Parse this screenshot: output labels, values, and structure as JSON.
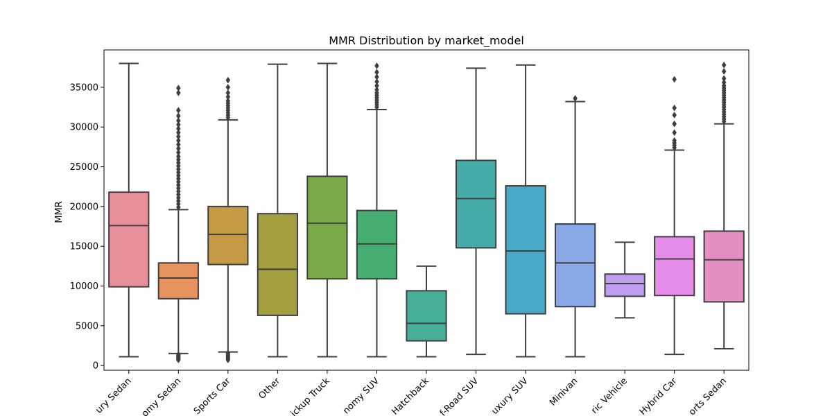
{
  "chart_data": {
    "type": "box",
    "title": "MMR Distribution by market_model",
    "xlabel": "",
    "ylabel": "MMR",
    "ylim": [
      -600,
      39700
    ],
    "yticks": [
      0,
      5000,
      10000,
      15000,
      20000,
      25000,
      30000,
      35000
    ],
    "grid": false,
    "categories": [
      "Luxury Sedan",
      "Economy Sedan",
      "Sports Car",
      "Other",
      "Pickup Truck",
      "Economy SUV",
      "Hatchback",
      "Off-Road SUV",
      "Luxury SUV",
      "Minivan",
      "Electric Vehicle",
      "Hybrid Car",
      "Sports Sedan"
    ],
    "category_labels_shown": [
      "ury Sedan",
      "omy Sedan",
      "Sports Car",
      "Other",
      "ickup Truck",
      "nomy SUV",
      "Hatchback",
      "f-Road SUV",
      "uxury SUV",
      "Minivan",
      "ric Vehicle",
      "Hybrid Car",
      "orts Sedan"
    ],
    "colors": [
      "#e8909a",
      "#e6935f",
      "#c49a44",
      "#a39f3e",
      "#7aaa48",
      "#46ad73",
      "#47ae99",
      "#45aba8",
      "#4aa9c8",
      "#89a9e6",
      "#bf9ef0",
      "#e58bea",
      "#e58ec2"
    ],
    "boxes": [
      {
        "whislo": 1100,
        "q1": 9900,
        "med": 17600,
        "q3": 21800,
        "whishi": 38000,
        "fliers": []
      },
      {
        "whislo": 1500,
        "q1": 8400,
        "med": 11000,
        "q3": 12900,
        "whishi": 19600,
        "fliers": [
          700,
          800,
          900,
          1000,
          1100,
          1200,
          1300,
          1400,
          19900,
          20300,
          20700,
          21100,
          21500,
          21900,
          22300,
          22700,
          23100,
          23500,
          23900,
          24300,
          24700,
          25100,
          25500,
          25900,
          26300,
          26800,
          27300,
          27800,
          28300,
          28800,
          29300,
          29800,
          30300,
          30800,
          31400,
          32100,
          34300,
          34900
        ]
      },
      {
        "whislo": 1700,
        "q1": 12700,
        "med": 16500,
        "q3": 20000,
        "whishi": 30900,
        "fliers": [
          700,
          850,
          1000,
          1150,
          1300,
          1450,
          1550,
          31200,
          31500,
          31800,
          32100,
          32400,
          32700,
          33000,
          33300,
          33800,
          34300,
          35000,
          35900
        ]
      },
      {
        "whislo": 1100,
        "q1": 6300,
        "med": 12100,
        "q3": 19100,
        "whishi": 37900,
        "fliers": []
      },
      {
        "whislo": 1100,
        "q1": 10900,
        "med": 17900,
        "q3": 23800,
        "whishi": 38000,
        "fliers": []
      },
      {
        "whislo": 1100,
        "q1": 10900,
        "med": 15300,
        "q3": 19500,
        "whishi": 32200,
        "fliers": [
          32500,
          32800,
          33100,
          33400,
          33700,
          34000,
          34300,
          34700,
          35200,
          35700,
          36300,
          36900,
          37700
        ]
      },
      {
        "whislo": 1100,
        "q1": 3100,
        "med": 5300,
        "q3": 9400,
        "whishi": 12500,
        "fliers": []
      },
      {
        "whislo": 1400,
        "q1": 14800,
        "med": 21000,
        "q3": 25800,
        "whishi": 37400,
        "fliers": []
      },
      {
        "whislo": 1100,
        "q1": 6500,
        "med": 14400,
        "q3": 22600,
        "whishi": 37800,
        "fliers": []
      },
      {
        "whislo": 1100,
        "q1": 7400,
        "med": 12900,
        "q3": 17800,
        "whishi": 33200,
        "fliers": [
          33600
        ]
      },
      {
        "whislo": 6000,
        "q1": 8700,
        "med": 10300,
        "q3": 11500,
        "whishi": 15500,
        "fliers": []
      },
      {
        "whislo": 1400,
        "q1": 8800,
        "med": 13400,
        "q3": 16200,
        "whishi": 27100,
        "fliers": [
          27400,
          27700,
          28000,
          28300,
          29300,
          30400,
          31500,
          32400,
          36000
        ]
      },
      {
        "whislo": 2100,
        "q1": 8000,
        "med": 13300,
        "q3": 16900,
        "whishi": 30400,
        "fliers": [
          30700,
          31000,
          31300,
          31600,
          31900,
          32200,
          32500,
          32800,
          33100,
          33400,
          33700,
          34000,
          34300,
          34600,
          34900,
          35200,
          35600,
          36100,
          37000,
          37800
        ]
      }
    ]
  }
}
